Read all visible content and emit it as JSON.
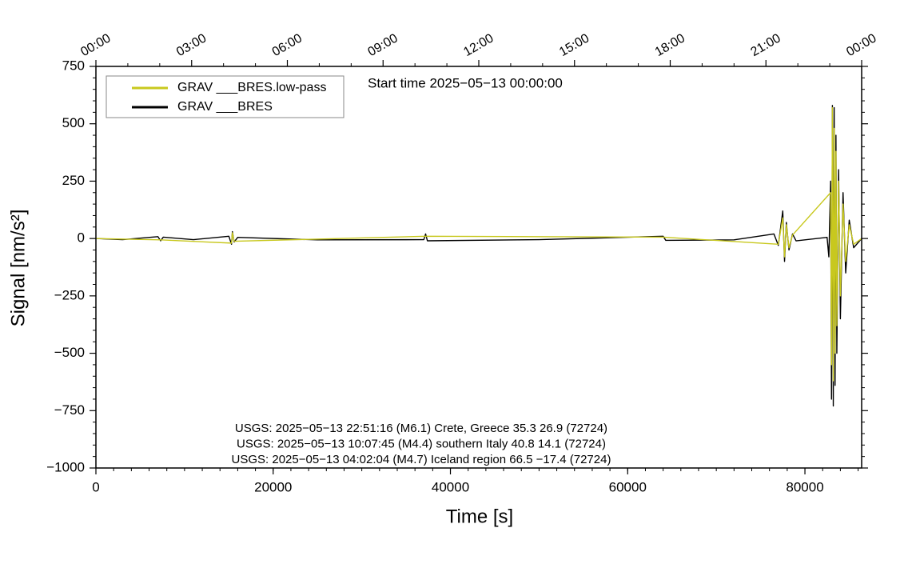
{
  "chart_data": {
    "type": "line",
    "title": "Start time 2025−05−13 00:00:00",
    "xlabel": "Time [s]",
    "ylabel": "Signal [nm/s²]",
    "annotations": [
      "USGS: 2025−05−13 22:51:16 (M6.1) Crete, Greece 35.3 26.9 (72724)",
      "USGS: 2025−05−13 10:07:45 (M4.4) southern Italy 40.8 14.1 (72724)",
      "USGS: 2025−05−13 04:02:04 (M4.7) Iceland region 66.5 −17.4 (72724)"
    ],
    "xlim": [
      0,
      86400
    ],
    "ylim": [
      -1000,
      750
    ],
    "xticks": [
      0,
      20000,
      40000,
      60000,
      80000
    ],
    "yticks": [
      {
        "value": -1000,
        "label": "−1000"
      },
      {
        "value": -750,
        "label": "−750"
      },
      {
        "value": -500,
        "label": "−500"
      },
      {
        "value": -250,
        "label": "−250"
      },
      0,
      250,
      500,
      750
    ],
    "top_xticks": [
      {
        "value": 0,
        "label": "00:00"
      },
      {
        "value": 10800,
        "label": "03:00"
      },
      {
        "value": 21600,
        "label": "06:00"
      },
      {
        "value": 32400,
        "label": "09:00"
      },
      {
        "value": 43200,
        "label": "12:00"
      },
      {
        "value": 54000,
        "label": "15:00"
      },
      {
        "value": 64800,
        "label": "18:00"
      },
      {
        "value": 75600,
        "label": "21:00"
      },
      {
        "value": 86400,
        "label": "00:00"
      }
    ],
    "legend": "upper left",
    "series": [
      {
        "name": "GRAV ___BRES",
        "color": "#000000",
        "x": [
          0,
          3000,
          7000,
          7300,
          7600,
          11000,
          15000,
          15300,
          15400,
          15600,
          16000,
          25000,
          37000,
          37200,
          37400,
          50000,
          64000,
          64300,
          72000,
          76500,
          77000,
          77500,
          77700,
          77900,
          78200,
          78600,
          79000,
          82500,
          82700,
          82900,
          83000,
          83100,
          83200,
          83300,
          83400,
          83500,
          83600,
          83800,
          84000,
          84300,
          84600,
          85000,
          85500,
          86400
        ],
        "values": [
          0,
          -5,
          8,
          -10,
          6,
          -5,
          10,
          -25,
          30,
          -15,
          5,
          -6,
          -5,
          20,
          -10,
          -5,
          10,
          -8,
          -6,
          20,
          -30,
          120,
          -100,
          70,
          -50,
          20,
          -10,
          5,
          -80,
          250,
          -700,
          580,
          -730,
          570,
          -640,
          450,
          -500,
          300,
          -350,
          200,
          -150,
          80,
          -40,
          0
        ]
      },
      {
        "name": "GRAV ___BRES.low-pass",
        "color": "#c8c81e",
        "x": [
          0,
          7300,
          15300,
          15400,
          15600,
          37200,
          64000,
          77000,
          77500,
          77700,
          77900,
          78200,
          78600,
          82900,
          83000,
          83100,
          83200,
          83300,
          83400,
          83500,
          83600,
          83800,
          84000,
          84300,
          84600,
          85000,
          85500,
          86400
        ],
        "values": [
          0,
          -6,
          -20,
          25,
          -12,
          10,
          6,
          -25,
          90,
          -80,
          60,
          -40,
          15,
          200,
          -550,
          570,
          -620,
          480,
          -500,
          380,
          -380,
          250,
          -250,
          150,
          -100,
          60,
          -25,
          0
        ]
      }
    ]
  }
}
